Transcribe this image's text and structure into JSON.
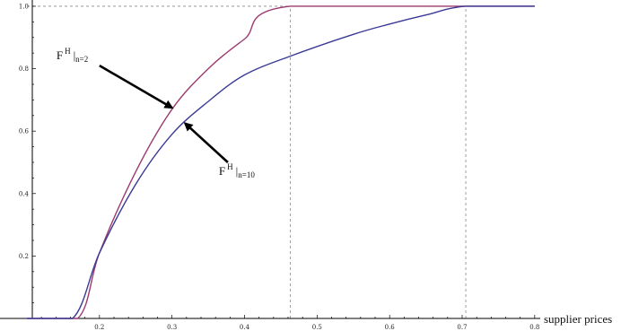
{
  "chart_data": {
    "type": "line",
    "xlabel": "supplier prices",
    "ylabel": "",
    "xlim": [
      0.1,
      0.82
    ],
    "ylim": [
      0,
      1.02
    ],
    "x_ticks": [
      0.2,
      0.3,
      0.4,
      0.5,
      0.6,
      0.7,
      0.8
    ],
    "y_ticks": [
      0.2,
      0.4,
      0.6,
      0.8,
      1.0
    ],
    "x_tick_labels": [
      "0.2",
      "0.3",
      "0.4",
      "0.5",
      "0.6",
      "0.7",
      "0.8"
    ],
    "y_tick_labels": [
      "0.2",
      "0.4",
      "0.6",
      "0.8",
      "1.0"
    ],
    "grid": false,
    "reference_lines": [
      {
        "orientation": "horizontal",
        "value": 1.0,
        "style": "dashed"
      },
      {
        "orientation": "vertical",
        "value": 0.463,
        "style": "dashed"
      },
      {
        "orientation": "vertical",
        "value": 0.705,
        "style": "dashed"
      }
    ],
    "series": [
      {
        "color": "#9b3a6e",
        "points": [
          [
            0.1,
            0
          ],
          [
            0.17,
            0
          ],
          [
            0.2,
            0.21
          ],
          [
            0.25,
            0.47
          ],
          [
            0.3,
            0.67
          ],
          [
            0.35,
            0.8
          ],
          [
            0.4,
            0.895
          ],
          [
            0.463,
            1.0
          ],
          [
            0.8,
            1.0
          ]
        ]
      },
      {
        "color": "#3a3a96",
        "points": [
          [
            0.1,
            0
          ],
          [
            0.163,
            0
          ],
          [
            0.2,
            0.21
          ],
          [
            0.25,
            0.43
          ],
          [
            0.3,
            0.59
          ],
          [
            0.35,
            0.695
          ],
          [
            0.4,
            0.78
          ],
          [
            0.463,
            0.84
          ],
          [
            0.55,
            0.91
          ],
          [
            0.6,
            0.943
          ],
          [
            0.65,
            0.972
          ],
          [
            0.705,
            1.0
          ],
          [
            0.8,
            1.0
          ]
        ]
      }
    ],
    "annotations": [
      {
        "id": "n2",
        "main": "F",
        "sup": "H",
        "sub": "n=2",
        "arrow_from": [
          0.2,
          0.81
        ],
        "arrow_to": [
          0.3,
          0.675
        ]
      },
      {
        "id": "n10",
        "main": "F",
        "sup": "H",
        "sub": "n=10",
        "arrow_from": [
          0.377,
          0.5
        ],
        "arrow_to": [
          0.318,
          0.625
        ]
      }
    ]
  }
}
